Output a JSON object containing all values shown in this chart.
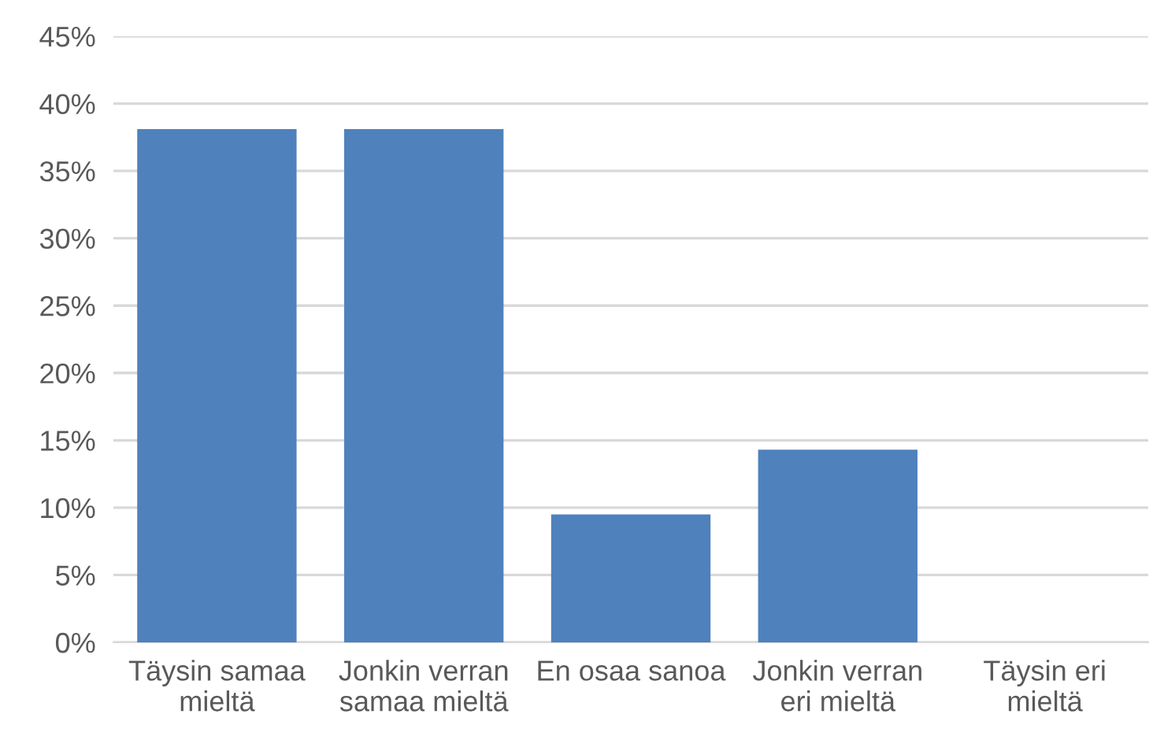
{
  "chart_data": {
    "type": "bar",
    "categories": [
      "Täysin samaa\nmieltä",
      "Jonkin verran\nsamaa mieltä",
      "En osaa sanoa",
      "Jonkin verran\neri mieltä",
      "Täysin eri\nmieltä"
    ],
    "values": [
      38.1,
      38.1,
      9.5,
      14.3,
      0
    ],
    "color": "#4f81bd",
    "ylim": [
      0,
      45
    ],
    "yticks": [
      {
        "value": 0,
        "label": "0%"
      },
      {
        "value": 5,
        "label": "5%"
      },
      {
        "value": 10,
        "label": "10%"
      },
      {
        "value": 15,
        "label": "15%"
      },
      {
        "value": 20,
        "label": "20%"
      },
      {
        "value": 25,
        "label": "25%"
      },
      {
        "value": 30,
        "label": "30%"
      },
      {
        "value": 35,
        "label": "35%"
      },
      {
        "value": 40,
        "label": "40%"
      },
      {
        "value": 45,
        "label": "45%"
      }
    ],
    "grid": "y"
  }
}
